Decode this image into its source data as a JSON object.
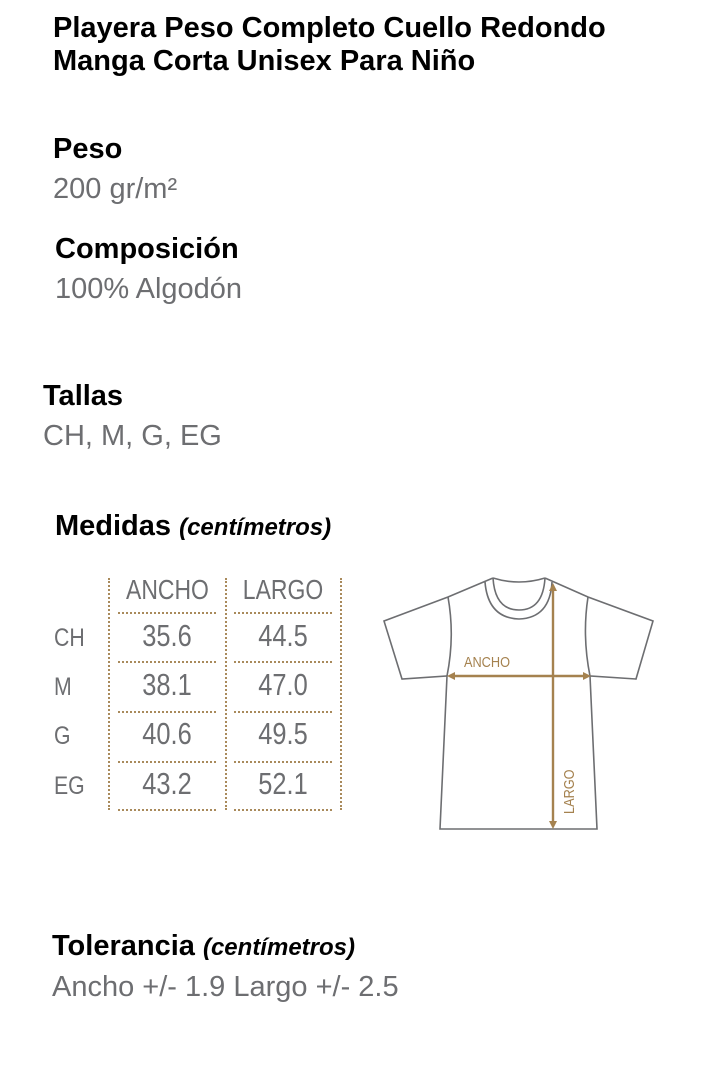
{
  "title_line1": "Playera Peso Completo Cuello Redondo",
  "title_line2": "Manga Corta Unisex Para Niño",
  "peso": {
    "label": "Peso",
    "value": "200 gr/m²"
  },
  "composicion": {
    "label": "Composición",
    "value": "100% Algodón"
  },
  "tallas": {
    "label": "Tallas",
    "value": "CH, M, G, EG"
  },
  "medidas": {
    "label": "Medidas",
    "unit": "(centímetros)",
    "columns": [
      "ANCHO",
      "LARGO"
    ],
    "rows": [
      {
        "size": "CH",
        "ancho": "35.6",
        "largo": "44.5"
      },
      {
        "size": "M",
        "ancho": "38.1",
        "largo": "47.0"
      },
      {
        "size": "G",
        "ancho": "40.6",
        "largo": "49.5"
      },
      {
        "size": "EG",
        "ancho": "43.2",
        "largo": "52.1"
      }
    ]
  },
  "diagram": {
    "ancho_label": "ANCHO",
    "largo_label": "LARGO",
    "accent_color": "#a5824f",
    "outline_color": "#6d6e71"
  },
  "tolerancia": {
    "label": "Tolerancia",
    "unit": "(centímetros)",
    "value": "Ancho +/- 1.9 Largo +/- 2.5"
  }
}
